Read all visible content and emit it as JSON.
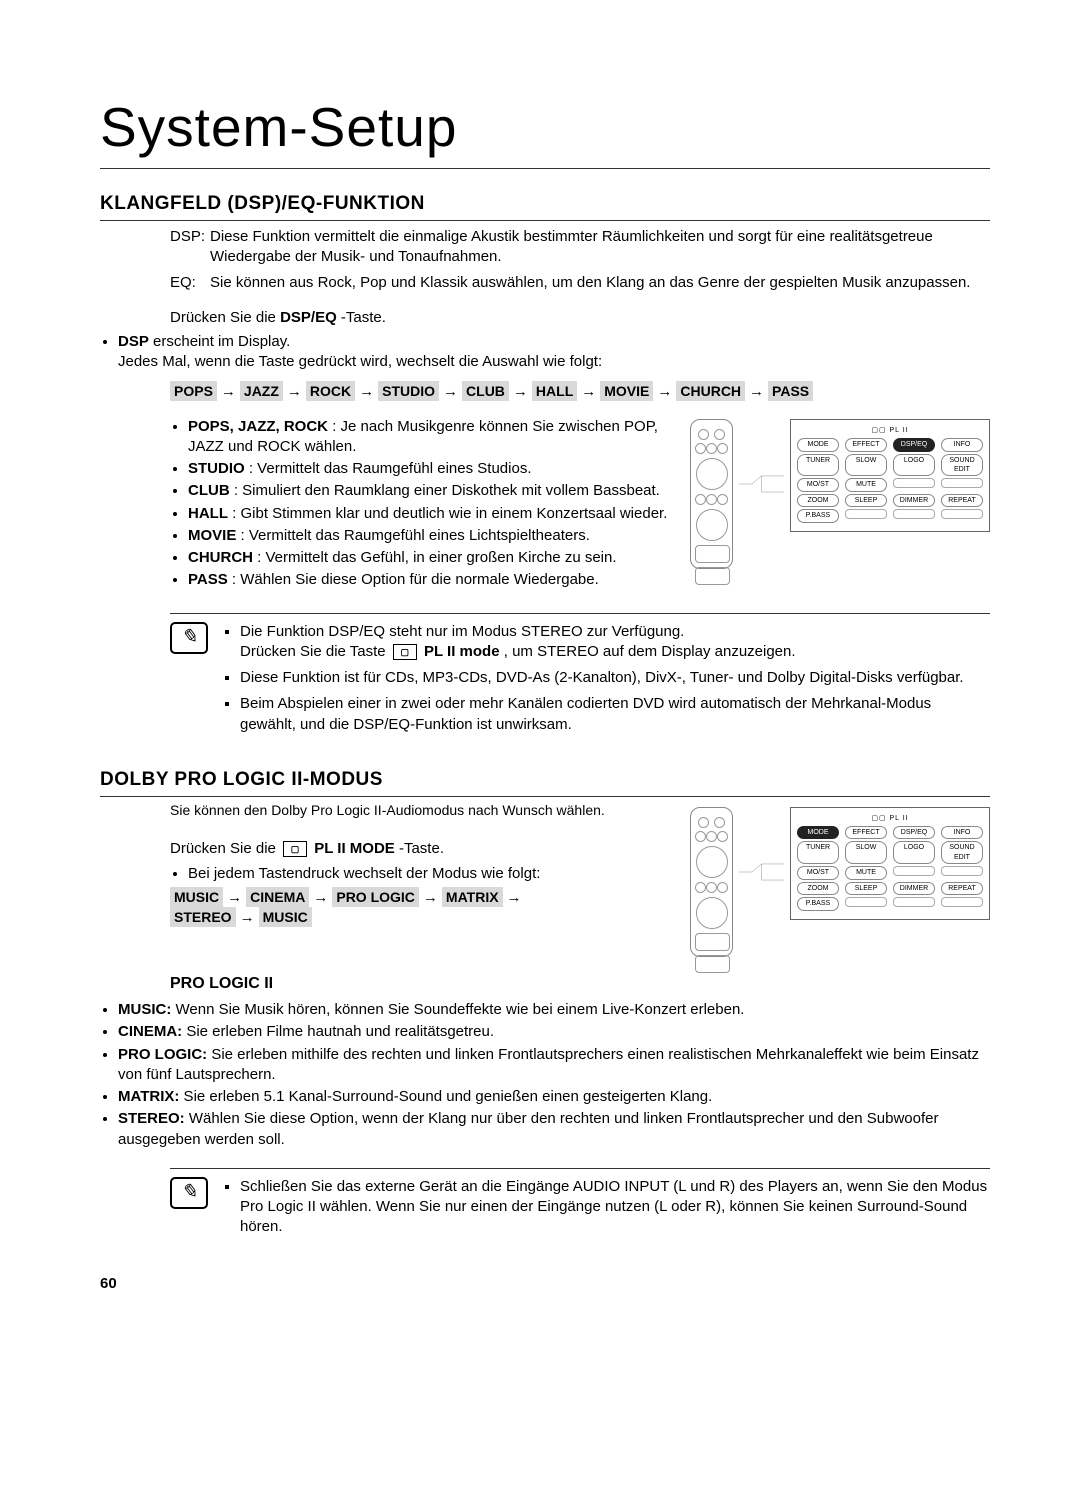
{
  "page_number": "60",
  "page_title": "System-Setup",
  "section1": {
    "title": "KLANGFELD (DSP)/EQ-FUNKTION",
    "dsp_label": "DSP:",
    "dsp_text": "Diese Funktion vermittelt die einmalige Akustik bestimmter Räumlichkeiten und sorgt für eine realitätsgetreue Wiedergabe der Musik- und Tonaufnahmen.",
    "eq_label": "EQ:",
    "eq_text": "Sie können aus Rock, Pop und Klassik auswählen, um den Klang an das Genre der gespielten Musik anzupassen.",
    "press_pre": "Drücken Sie die ",
    "press_bold": "DSP/EQ",
    "press_post": "-Taste.",
    "first_bullet_bold": "DSP",
    "first_bullet_rest": " erscheint im Display.",
    "every_press": "Jedes Mal, wenn die Taste gedrückt wird, wechselt die Auswahl wie folgt:",
    "chain": [
      "POPS",
      "JAZZ",
      "ROCK",
      "STUDIO",
      "CLUB",
      "HALL",
      "MOVIE",
      "CHURCH",
      "PASS"
    ],
    "modes": [
      {
        "b": "POPS, JAZZ, ROCK",
        "t": " : Je nach Musikgenre können Sie zwischen POP, JAZZ und ROCK wählen."
      },
      {
        "b": "STUDIO",
        "t": " : Vermittelt das Raumgefühl eines Studios."
      },
      {
        "b": "CLUB",
        "t": " : Simuliert den Raumklang einer Diskothek mit vollem Bassbeat."
      },
      {
        "b": "HALL",
        "t": " : Gibt Stimmen klar und deutlich wie in einem Konzertsaal wieder."
      },
      {
        "b": "MOVIE",
        "t": " : Vermittelt das Raumgefühl eines Lichtspieltheaters."
      },
      {
        "b": "CHURCH",
        "t": " : Vermittelt das Gefühl, in einer großen Kirche zu sein."
      },
      {
        "b": "PASS",
        "t": " : Wählen Sie diese Option für die normale Wiedergabe."
      }
    ],
    "notes": [
      "Die Funktion DSP/EQ steht nur im Modus STEREO zur Verfügung. Drücken Sie die Taste ▢ PL II mode, um STEREO auf dem Display anzuzeigen.",
      "Diese Funktion ist für CDs, MP3-CDs, DVD-As (2-Kanalton), DivX-, Tuner- und Dolby Digital-Disks verfügbar.",
      "Beim Abspielen einer in zwei oder mehr Kanälen codierten DVD wird automatisch der Mehrkanal-Modus gewählt, und die DSP/EQ-Funktion ist unwirksam."
    ],
    "note1_a": "Die Funktion DSP/EQ steht nur im Modus STEREO zur Verfügung.",
    "note1_b_pre": "Drücken Sie die Taste ",
    "note1_b_bold": "PL II mode",
    "note1_b_post": ", um STEREO auf dem Display anzuzeigen.",
    "panel": {
      "title": "▢▢ PL II",
      "rows": [
        [
          "MODE",
          "EFFECT",
          "DSP/EQ",
          "INFO"
        ],
        [
          "TUNER",
          "SLOW",
          "LOGO",
          "SOUND EDIT"
        ],
        [
          "MO/ST",
          "MUTE",
          "",
          ""
        ],
        [
          "ZOOM",
          "SLEEP",
          "DIMMER",
          "REPEAT"
        ],
        [
          "P.BASS",
          " ",
          " ",
          " "
        ]
      ],
      "highlight": "DSP/EQ"
    }
  },
  "section2": {
    "title": "DOLBY PRO LOGIC II-MODUS",
    "intro": "Sie können den Dolby Pro Logic II-Audiomodus nach Wunsch wählen.",
    "press_pre": "Drücken Sie die ",
    "press_bold": " PL II MODE ",
    "press_post": "-Taste.",
    "bullet": "Bei jedem Tastendruck wechselt der Modus wie folgt:",
    "chain": [
      "MUSIC",
      "CINEMA",
      "PRO LOGIC",
      "MATRIX",
      "STEREO",
      "MUSIC"
    ],
    "sub_title": "PRO LOGIC II",
    "modes": [
      {
        "b": "MUSIC:",
        "t": " Wenn Sie Musik hören, können Sie Soundeffekte wie bei einem Live-Konzert erleben."
      },
      {
        "b": "CINEMA:",
        "t": " Sie erleben Filme hautnah und realitätsgetreu."
      },
      {
        "b": "PRO LOGIC:",
        "t": " Sie erleben mithilfe des rechten und linken Frontlautsprechers einen realistischen Mehrkanaleffekt wie beim Einsatz von fünf Lautsprechern."
      },
      {
        "b": "MATRIX:",
        "t": " Sie erleben 5.1 Kanal-Surround-Sound und genießen einen gesteigerten Klang."
      },
      {
        "b": "STEREO:",
        "t": " Wählen Sie diese Option, wenn der Klang nur über den rechten und linken Frontlautsprecher und den Subwoofer ausgegeben werden soll."
      }
    ],
    "note": "Schließen Sie das externe Gerät an die Eingänge AUDIO INPUT  (L und R) des Players an, wenn Sie den Modus Pro Logic II wählen. Wenn Sie nur einen der Eingänge nutzen (L oder R), können Sie keinen Surround-Sound hören.",
    "panel": {
      "title": "▢▢ PL II",
      "rows": [
        [
          "MODE",
          "EFFECT",
          "DSP/EQ",
          "INFO"
        ],
        [
          "TUNER",
          "SLOW",
          "LOGO",
          "SOUND EDIT"
        ],
        [
          "MO/ST",
          "MUTE",
          "",
          ""
        ],
        [
          "ZOOM",
          "SLEEP",
          "DIMMER",
          "REPEAT"
        ],
        [
          "P.BASS",
          " ",
          " ",
          " "
        ]
      ],
      "highlight": "MODE"
    }
  }
}
